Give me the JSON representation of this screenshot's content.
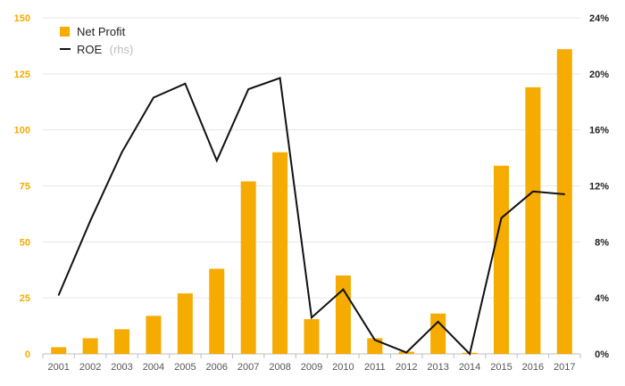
{
  "chart_data": {
    "type": "bar",
    "categories": [
      "2001",
      "2002",
      "2003",
      "2004",
      "2005",
      "2006",
      "2007",
      "2008",
      "2009",
      "2010",
      "2011",
      "2012",
      "2013",
      "2014",
      "2015",
      "2016",
      "2017"
    ],
    "series": [
      {
        "name": "Net Profit",
        "type": "bar",
        "axis": "left",
        "color": "#f5ab00",
        "values": [
          3,
          7,
          11,
          17,
          27,
          38,
          77,
          90,
          15.5,
          35,
          7,
          1,
          18,
          0.5,
          84,
          119,
          136
        ]
      },
      {
        "name": "ROE",
        "name_suffix": "(rhs)",
        "type": "line",
        "axis": "right",
        "color": "#111111",
        "values": [
          4.2,
          9.5,
          14.4,
          18.3,
          19.3,
          13.8,
          18.9,
          19.7,
          2.6,
          4.6,
          1.0,
          0.1,
          2.3,
          0.0,
          9.7,
          11.6,
          11.4
        ]
      }
    ],
    "y_left": {
      "ylim": [
        0,
        150
      ],
      "ticks": [
        "0",
        "25",
        "50",
        "75",
        "100",
        "125",
        "150"
      ]
    },
    "y_right": {
      "ylim": [
        0,
        24
      ],
      "ticks": [
        "0%",
        "4%",
        "8%",
        "12%",
        "16%",
        "20%",
        "24%"
      ]
    },
    "grid": true,
    "legend": "top-left"
  }
}
